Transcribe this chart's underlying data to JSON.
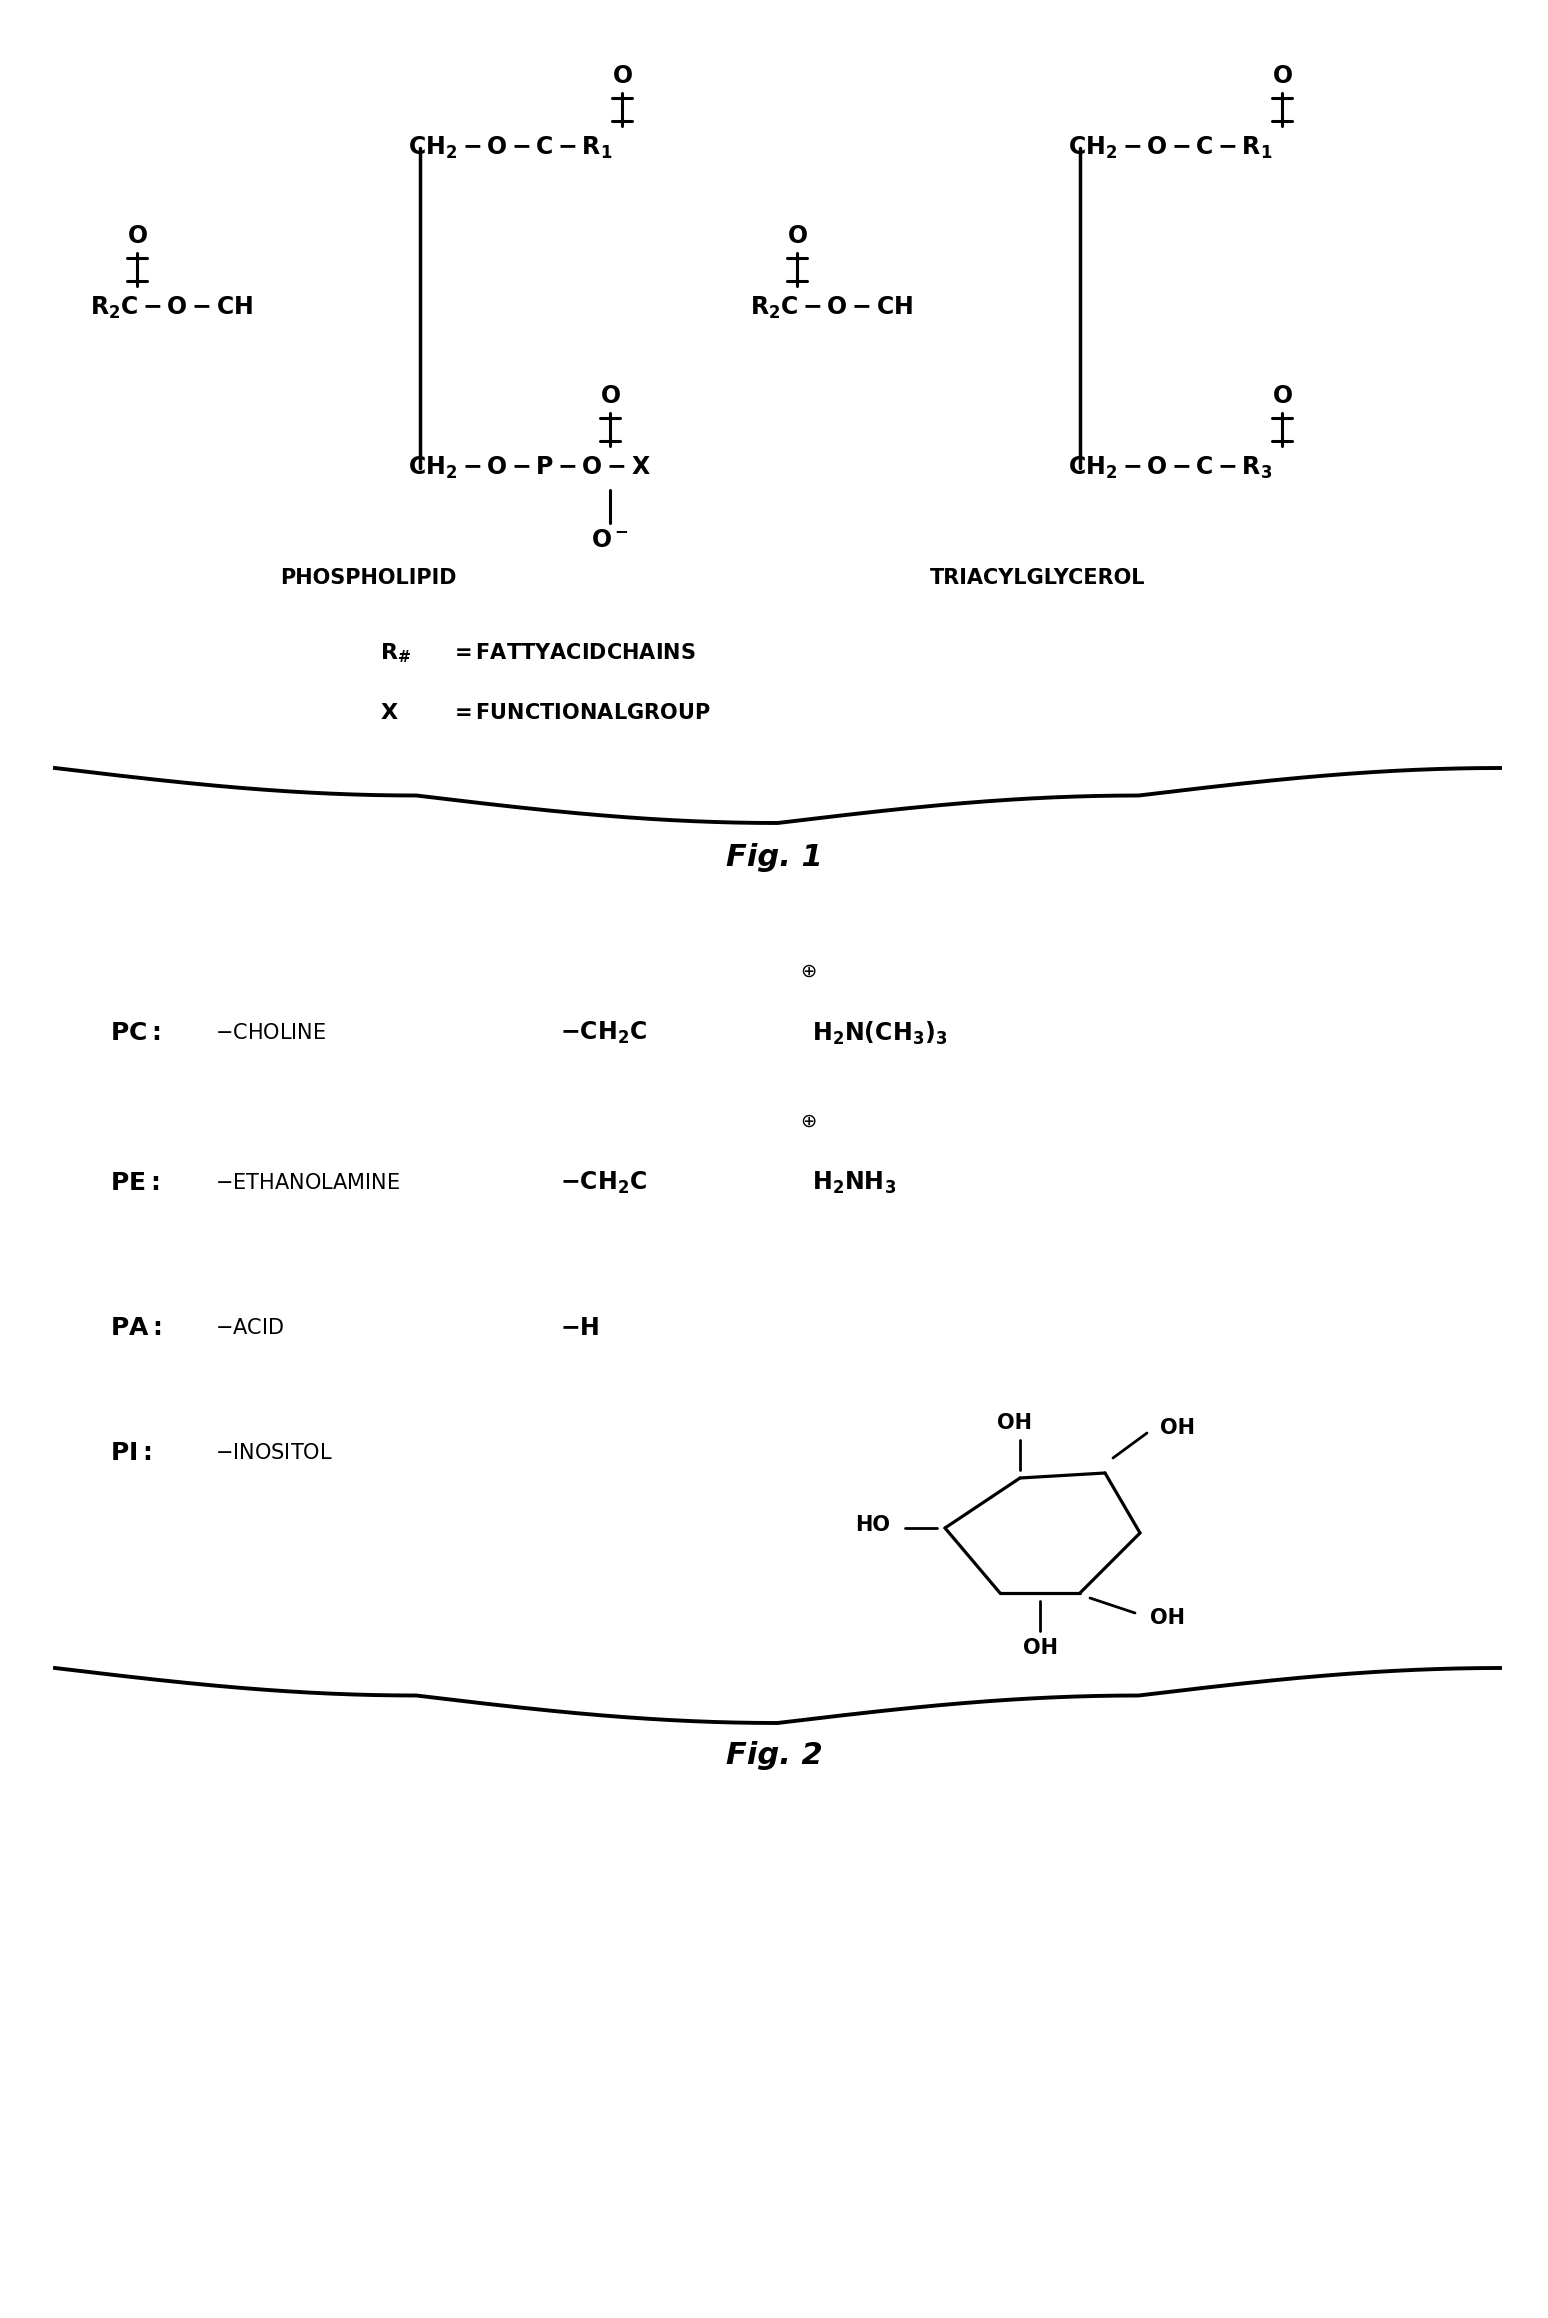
{
  "background_color": "#ffffff",
  "fig_width": 15.48,
  "fig_height": 23.18,
  "fig1_title": "Fig. 1",
  "fig2_title": "Fig. 2",
  "label_phospholipid": "PHOSPHOLIPID",
  "label_triacylglycerol": "TRIACYLGLYCEROL",
  "legend_line1": "R# =  FATTY ACID CHAINS",
  "legend_line2": "X   =  FUNCTIONAL GROUP",
  "pc_label": "PC:",
  "pc_desc": "-CHOLINE",
  "pe_label": "PE:",
  "pe_desc": "-ETHANOLAMINE",
  "pa_label": "PA:",
  "pa_desc": "-ACID",
  "pi_label": "PI:",
  "pi_desc": "-INOSITOL"
}
